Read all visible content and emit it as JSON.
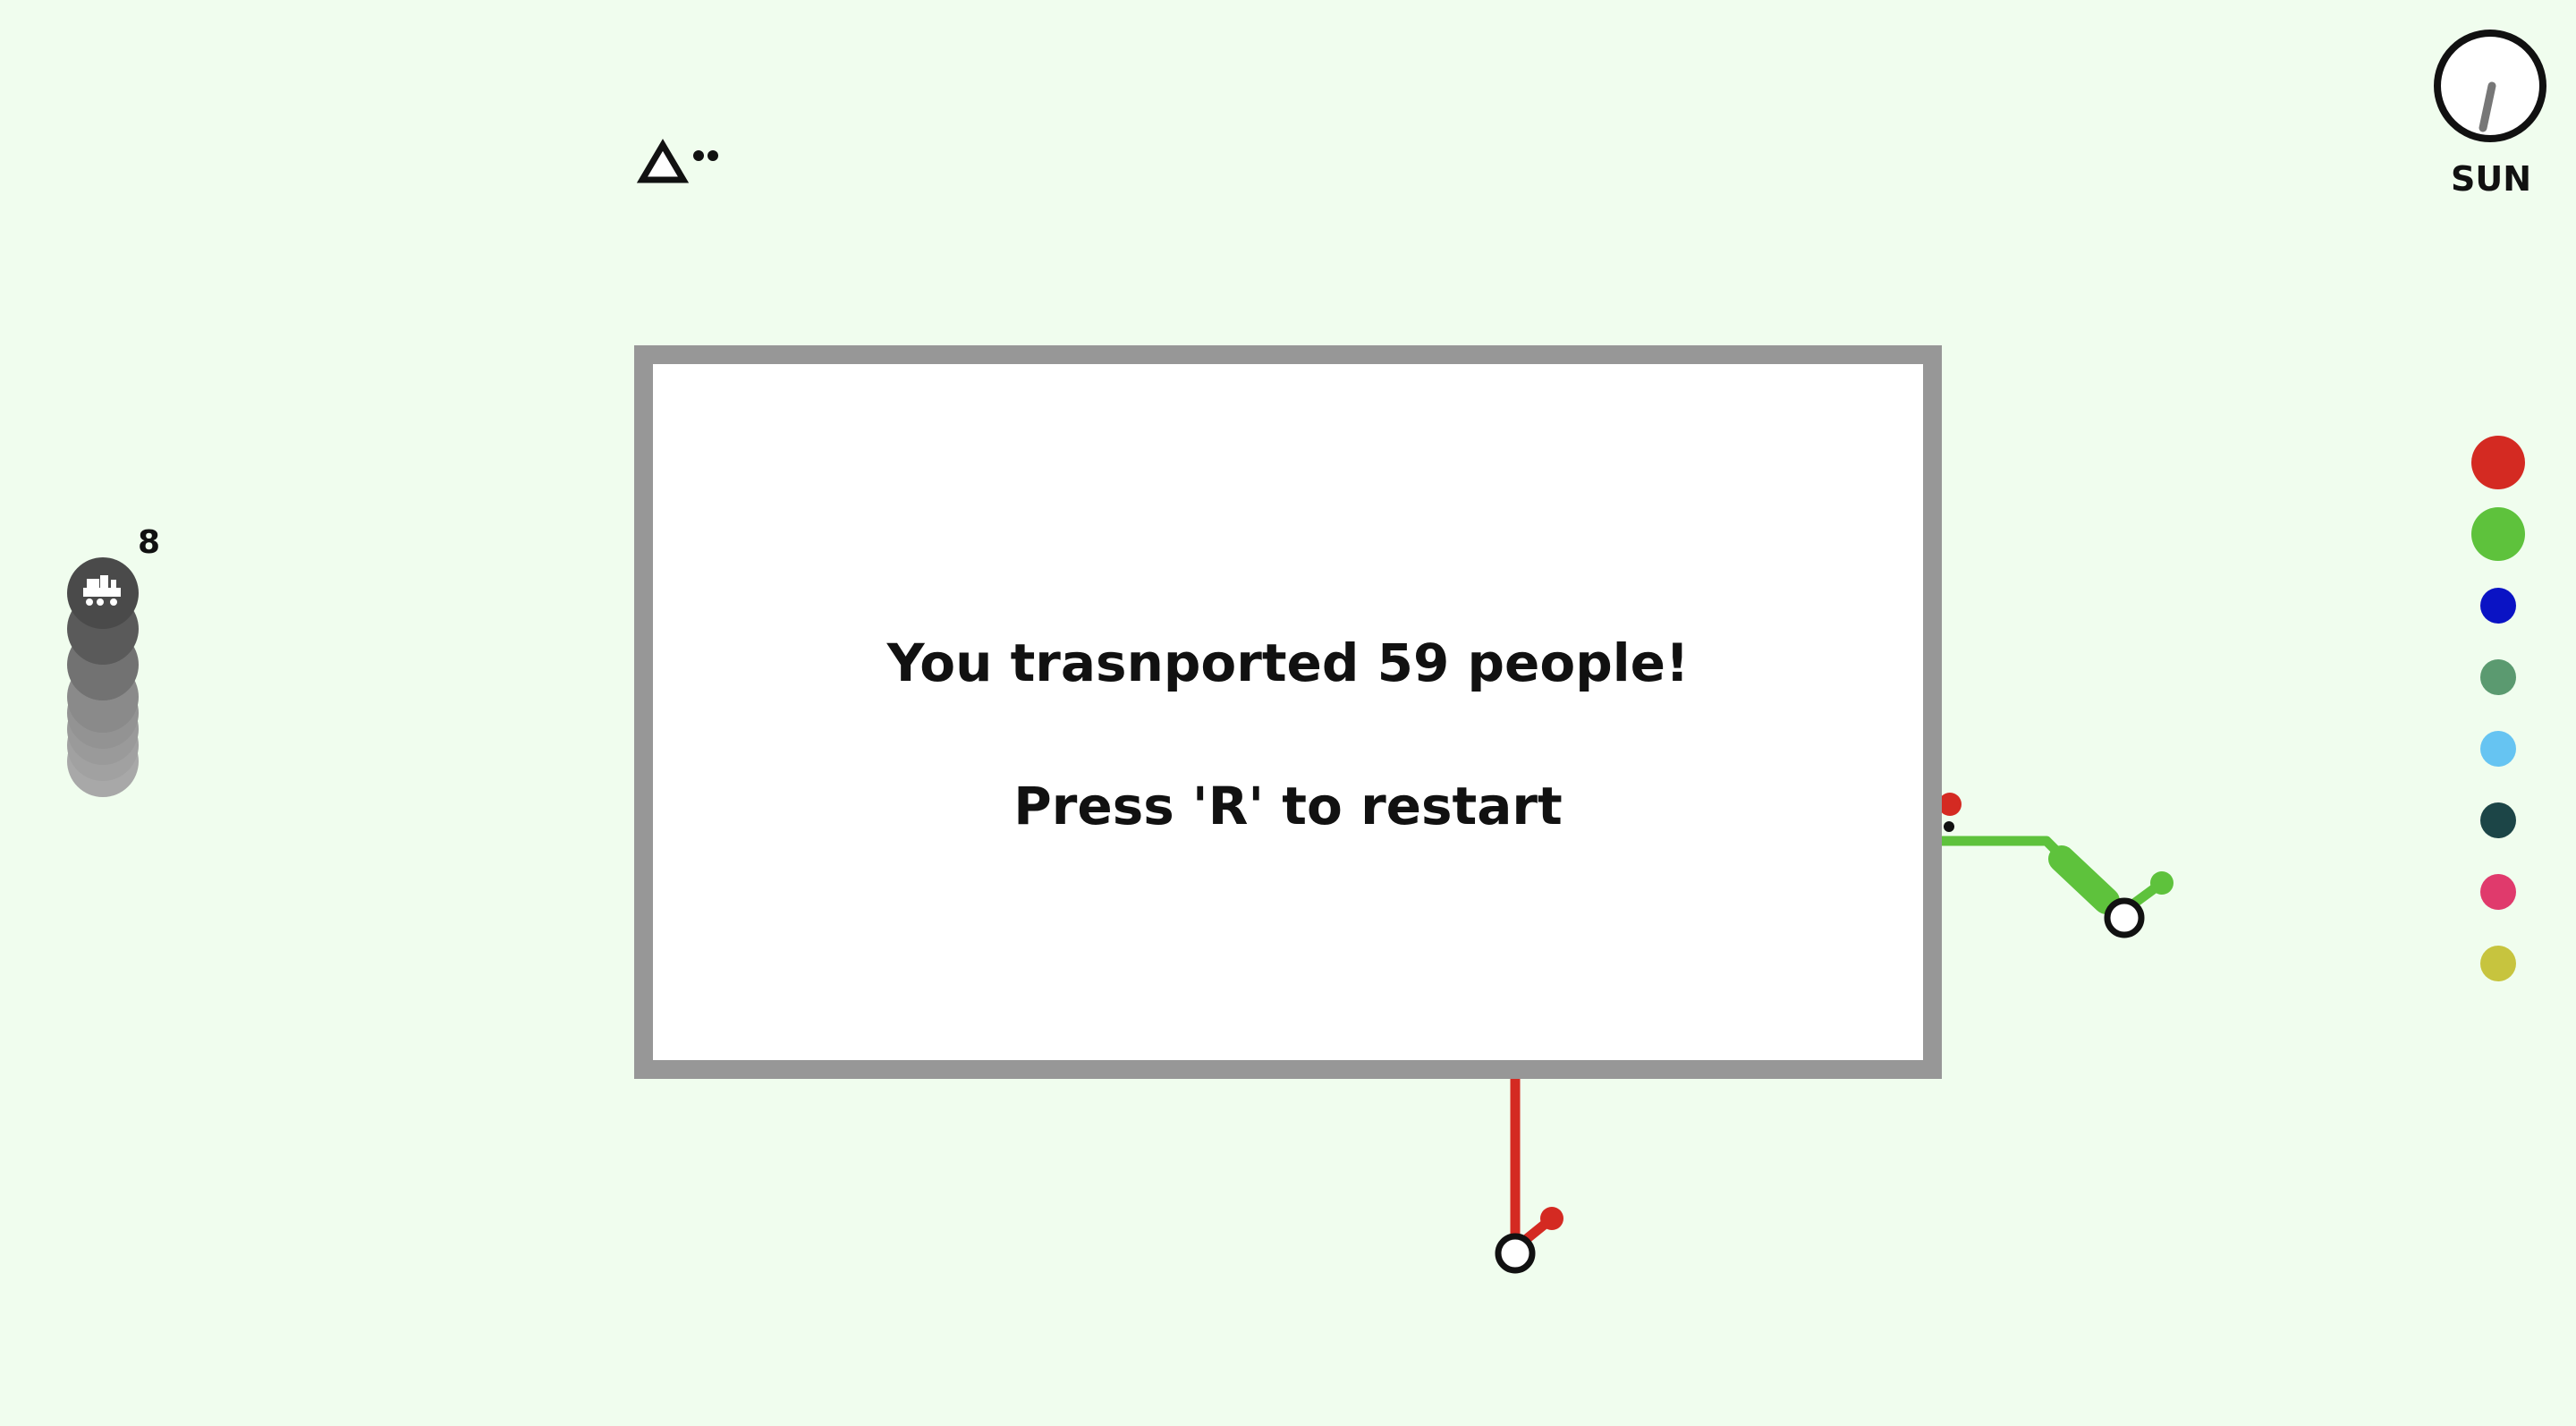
{
  "game_over": {
    "score_message": "You trasnported 59 people!",
    "restart_message": "Press 'R' to restart"
  },
  "clock": {
    "day": "SUN"
  },
  "trains": {
    "available_count": "8",
    "stack_size": 8
  },
  "passenger_queue": {
    "station_shape": "triangle",
    "waiting_passengers": 2
  },
  "lines": [
    {
      "name": "red",
      "color": "#d42a22",
      "active": true
    },
    {
      "name": "green",
      "color": "#5ec23c",
      "active": true
    },
    {
      "name": "blue",
      "color": "#0a13c4",
      "active": false
    },
    {
      "name": "sea-green",
      "color": "#5b9a70",
      "active": false
    },
    {
      "name": "sky-blue",
      "color": "#66c4f2",
      "active": false
    },
    {
      "name": "dark-teal",
      "color": "#1c4547",
      "active": false
    },
    {
      "name": "pink",
      "color": "#e03a6c",
      "active": false
    },
    {
      "name": "olive-yellow",
      "color": "#c7c43e",
      "active": false
    }
  ],
  "colors": {
    "background": "#f0fdee",
    "dialog_border": "#979797",
    "station_outline": "#111111"
  }
}
